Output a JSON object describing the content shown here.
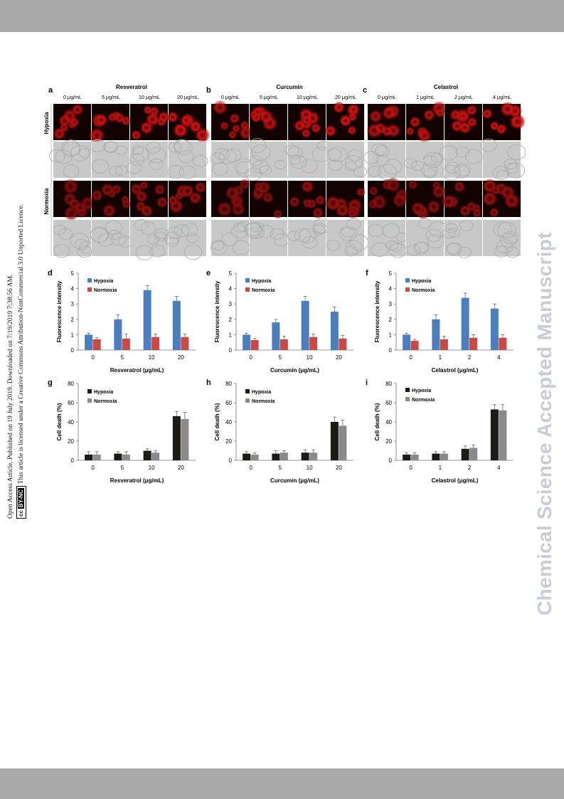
{
  "sidebar": {
    "line1": "Open Access Article. Published on 19 July 2019. Downloaded on 7/19/2019 7:38:56 AM.",
    "cc_badge": "cc",
    "cc_badge_text": "BY-NC",
    "line2": "This article is licensed under a Creative Commons Attribution-NonCommercial 3.0 Unported Licence."
  },
  "watermark": "Chemical Science Accepted Manuscript",
  "microscopy": {
    "row_labels": [
      "Hypoxia",
      "Normoxia"
    ],
    "panels": [
      {
        "letter": "a",
        "drug": "Resveratrol",
        "doses": [
          "0 μg/mL",
          "5 μg/mL",
          "10 μg/mL",
          "20 μg/mL"
        ]
      },
      {
        "letter": "b",
        "drug": "Curcumin",
        "doses": [
          "0 μg/mL",
          "5 μg/mL",
          "10 μg/mL",
          "20 μg/mL"
        ]
      },
      {
        "letter": "c",
        "drug": "Celastrol",
        "doses": [
          "0 μg/mL",
          "1 μg/mL",
          "2 μg/mL",
          "4 μg/mL"
        ]
      }
    ],
    "colors": {
      "fluor_bg": "#120202",
      "fluor_cell": "#d41515",
      "bright_bg": "#c8c8c8"
    }
  },
  "chart_data": [
    {
      "letter": "d",
      "type": "bar",
      "categories": [
        "0",
        "5",
        "10",
        "20"
      ],
      "xlabel": "Resveratrol (μg/mL)",
      "ylabel": "Fluorescence intensity",
      "ylim": [
        0,
        5
      ],
      "yticks": [
        "0",
        "1",
        "2",
        "3",
        "4",
        "5"
      ],
      "series": [
        {
          "name": "Hypoxia",
          "color": "#4a7ebf",
          "values": [
            1.0,
            2.0,
            3.9,
            3.2
          ],
          "errors": [
            0.1,
            0.3,
            0.3,
            0.3
          ]
        },
        {
          "name": "Normoxia",
          "color": "#c84a47",
          "values": [
            0.7,
            0.75,
            0.85,
            0.85
          ],
          "errors": [
            0.1,
            0.3,
            0.2,
            0.2
          ]
        }
      ]
    },
    {
      "letter": "e",
      "type": "bar",
      "categories": [
        "0",
        "5",
        "10",
        "20"
      ],
      "xlabel": "Curcumin (μg/mL)",
      "ylabel": "Fluorescence intensity",
      "ylim": [
        0,
        5
      ],
      "yticks": [
        "0",
        "1",
        "2",
        "3",
        "4",
        "5"
      ],
      "series": [
        {
          "name": "Hypoxia",
          "color": "#4a7ebf",
          "values": [
            1.0,
            1.8,
            3.2,
            2.5
          ],
          "errors": [
            0.1,
            0.2,
            0.3,
            0.3
          ]
        },
        {
          "name": "Normoxia",
          "color": "#c84a47",
          "values": [
            0.65,
            0.7,
            0.85,
            0.75
          ],
          "errors": [
            0.1,
            0.2,
            0.2,
            0.2
          ]
        }
      ]
    },
    {
      "letter": "f",
      "type": "bar",
      "categories": [
        "0",
        "1",
        "2",
        "4"
      ],
      "xlabel": "Celastrol (μg/mL)",
      "ylabel": "Fluorescence intensity",
      "ylim": [
        0,
        5
      ],
      "yticks": [
        "0",
        "1",
        "2",
        "3",
        "4",
        "5"
      ],
      "series": [
        {
          "name": "Hypoxia",
          "color": "#4a7ebf",
          "values": [
            1.0,
            2.0,
            3.4,
            2.7
          ],
          "errors": [
            0.1,
            0.3,
            0.3,
            0.3
          ]
        },
        {
          "name": "Normoxia",
          "color": "#c84a47",
          "values": [
            0.6,
            0.7,
            0.8,
            0.8
          ],
          "errors": [
            0.1,
            0.2,
            0.2,
            0.2
          ]
        }
      ]
    },
    {
      "letter": "g",
      "type": "bar",
      "categories": [
        "0",
        "5",
        "10",
        "20"
      ],
      "xlabel": "Resveratrol (μg/mL)",
      "ylabel": "Cell death (%)",
      "ylim": [
        0,
        80
      ],
      "yticks": [
        "0",
        "20",
        "40",
        "60",
        "80"
      ],
      "series": [
        {
          "name": "Hypoxia",
          "color": "#1c1c14",
          "values": [
            6,
            7,
            10,
            46
          ],
          "errors": [
            3,
            2,
            2,
            5
          ]
        },
        {
          "name": "Normoxia",
          "color": "#8a8a8a",
          "values": [
            6,
            6,
            8,
            43
          ],
          "errors": [
            3,
            3,
            2,
            7
          ]
        }
      ]
    },
    {
      "letter": "h",
      "type": "bar",
      "categories": [
        "0",
        "5",
        "10",
        "20"
      ],
      "xlabel": "Curcumin (μg/mL)",
      "ylabel": "Cell death (%)",
      "ylim": [
        0,
        80
      ],
      "yticks": [
        "0",
        "20",
        "40",
        "60",
        "80"
      ],
      "series": [
        {
          "name": "Hypoxia",
          "color": "#1c1c14",
          "values": [
            7,
            7,
            8,
            40
          ],
          "errors": [
            2,
            3,
            3,
            5
          ]
        },
        {
          "name": "Normoxia",
          "color": "#8a8a8a",
          "values": [
            6,
            8,
            8,
            36
          ],
          "errors": [
            2,
            2,
            3,
            6
          ]
        }
      ]
    },
    {
      "letter": "i",
      "type": "bar",
      "categories": [
        "0",
        "1",
        "2",
        "4"
      ],
      "xlabel": "Celastrol (μg/mL)",
      "ylabel": "Cell death (%)",
      "ylim": [
        0,
        80
      ],
      "yticks": [
        "0",
        "20",
        "40",
        "60",
        "80"
      ],
      "series": [
        {
          "name": "Hypoxia",
          "color": "#1c1c14",
          "values": [
            6,
            7,
            12,
            53
          ],
          "errors": [
            2,
            2,
            3,
            5
          ]
        },
        {
          "name": "Normoxia",
          "color": "#8a8a8a",
          "values": [
            6,
            7,
            13,
            52
          ],
          "errors": [
            2,
            2,
            3,
            6
          ]
        }
      ]
    }
  ]
}
